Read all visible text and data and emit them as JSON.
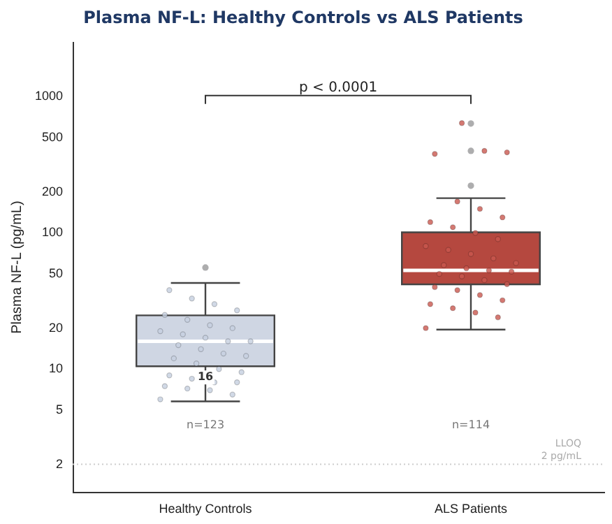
{
  "chart_data": {
    "type": "box",
    "title": "Plasma NF-L: Healthy Controls vs ALS Patients",
    "ylabel": "Plasma NF-L (pg/mL)",
    "categories": [
      "Healthy Controls",
      "ALS Patients"
    ],
    "colors": [
      "#cfd6e3",
      "#b5483f"
    ],
    "boxes": [
      {
        "low": 5.8,
        "q1": 10.5,
        "median": 16,
        "q3": 24.8,
        "high": 42.9,
        "outliers": [
          55.7
        ]
      },
      {
        "low": 19.5,
        "q1": 41.9,
        "median": 53,
        "q3": 101,
        "high": 180,
        "outliers": [
          222,
          400,
          635
        ]
      }
    ],
    "series": [
      {
        "type": "scatter",
        "color": "#c5cfe0",
        "x": [
          "Healthy Controls",
          "Healthy Controls",
          "Healthy Controls",
          "Healthy Controls",
          "Healthy Controls",
          "Healthy Controls",
          "Healthy Controls",
          "Healthy Controls",
          "Healthy Controls",
          "Healthy Controls",
          "Healthy Controls",
          "Healthy Controls",
          "Healthy Controls",
          "Healthy Controls",
          "Healthy Controls",
          "Healthy Controls",
          "Healthy Controls",
          "Healthy Controls",
          "Healthy Controls",
          "Healthy Controls",
          "Healthy Controls",
          "Healthy Controls",
          "Healthy Controls",
          "Healthy Controls",
          "Healthy Controls",
          "Healthy Controls",
          "Healthy Controls",
          "Healthy Controls",
          "Healthy Controls",
          "Healthy Controls"
        ],
        "values": [
          6,
          6.5,
          7,
          7.2,
          7.5,
          8,
          8,
          8.5,
          9,
          9.5,
          10,
          11,
          12,
          12.5,
          13,
          14,
          15,
          16,
          16,
          17,
          18,
          19,
          20,
          21,
          23,
          25,
          27,
          30,
          33,
          38
        ]
      },
      {
        "type": "scatter",
        "color": "#c9574f",
        "x": [
          "ALS Patients",
          "ALS Patients",
          "ALS Patients",
          "ALS Patients",
          "ALS Patients",
          "ALS Patients",
          "ALS Patients",
          "ALS Patients",
          "ALS Patients",
          "ALS Patients",
          "ALS Patients",
          "ALS Patients",
          "ALS Patients",
          "ALS Patients",
          "ALS Patients",
          "ALS Patients",
          "ALS Patients",
          "ALS Patients",
          "ALS Patients",
          "ALS Patients",
          "ALS Patients",
          "ALS Patients",
          "ALS Patients",
          "ALS Patients",
          "ALS Patients",
          "ALS Patients",
          "ALS Patients",
          "ALS Patients",
          "ALS Patients",
          "ALS Patients",
          "ALS Patients",
          "ALS Patients",
          "ALS Patients"
        ],
        "values": [
          20,
          24,
          26,
          28,
          30,
          32,
          35,
          38,
          40,
          42,
          45,
          48,
          50,
          52,
          53,
          55,
          58,
          60,
          65,
          70,
          75,
          80,
          90,
          100,
          110,
          120,
          130,
          150,
          170,
          380,
          390,
          400,
          640
        ]
      }
    ],
    "log": "y",
    "ylim": [
      1.25,
      2500
    ],
    "yticks": [
      2,
      5,
      10,
      20,
      50,
      100,
      200,
      500,
      1000
    ],
    "ref_lines": [
      {
        "axis": "y",
        "value": 2,
        "label": "LLOQ\n2 pg/mL",
        "color": "#cccccc",
        "line_style": "dotted"
      }
    ],
    "annotations": [
      "p < 0.0001",
      "16",
      "n=123",
      "n=114"
    ]
  }
}
